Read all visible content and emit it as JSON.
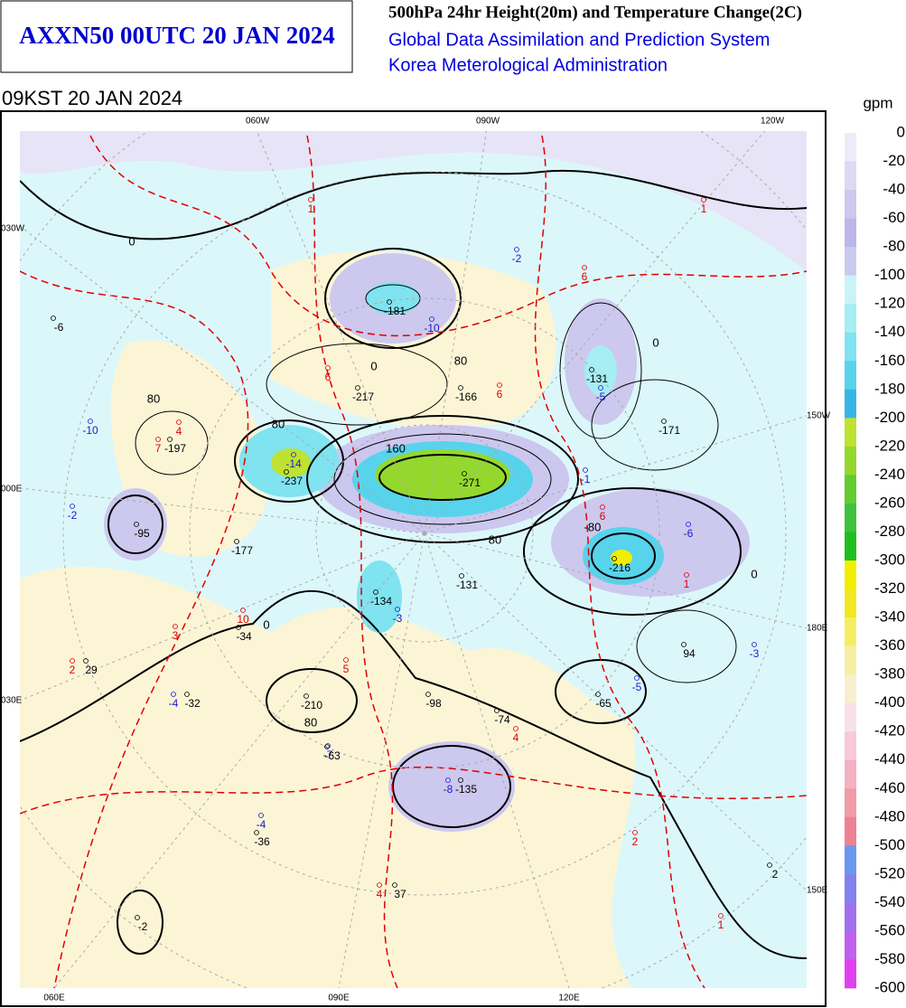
{
  "header": {
    "title": "AXXN50 00UTC 20 JAN 2024",
    "product": "500hPa 24hr Height(20m) and Temperature Change(2C)",
    "system": "Global Data Assimilation and Prediction System",
    "agency": "Korea Meterological Administration"
  },
  "valid_time": "09KST 20 JAN 2024",
  "map": {
    "top_labels": [
      "060W",
      "090W",
      "120W"
    ],
    "left_labels": [
      "030W",
      "000E",
      "030E"
    ],
    "right_labels": [
      "150W",
      "180E",
      "150E"
    ],
    "bottom_labels": [
      "060E",
      "090E",
      "120E"
    ],
    "height_change_labels": [
      "-181",
      "-217",
      "-166",
      "-197",
      "-237",
      "-271",
      "-95",
      "-177",
      "-131",
      "-171",
      "-216",
      "-134",
      "-131",
      "-34",
      "29",
      "-32",
      "-210",
      "-98",
      "-74",
      "-65",
      "94",
      "-63",
      "-135",
      "-36",
      "37",
      "2",
      "-2",
      "-6"
    ],
    "temperature_change_labels": [
      "1",
      "1",
      "6",
      "6",
      "6",
      "4",
      "7",
      "6",
      "1",
      "3",
      "2",
      "5",
      "4",
      "2",
      "4",
      "1",
      "-2",
      "-10",
      "-5",
      "-10",
      "-1",
      "-2",
      "-6",
      "-14",
      "10",
      "-3",
      "-5",
      "-4",
      "-3",
      "-7",
      "-8",
      "-4"
    ],
    "contour_labels": [
      "0",
      "0",
      "0",
      "80",
      "80",
      "80",
      "160",
      "80",
      "-80",
      "0",
      "0",
      "80"
    ]
  },
  "colorbar": {
    "unit": "gpm",
    "labels": [
      0,
      -20,
      -40,
      -60,
      -80,
      -100,
      -120,
      -140,
      -160,
      -180,
      -200,
      -220,
      -240,
      -260,
      -280,
      -300,
      -320,
      -340,
      -360,
      -380,
      -400,
      -420,
      -440,
      -460,
      -480,
      -500,
      -520,
      -540,
      -560,
      -580,
      -600
    ],
    "colors": [
      "#ecebf8",
      "#dcd9f3",
      "#cdc8ee",
      "#bdb6e8",
      "#c9cbee",
      "#c8f4f8",
      "#a6edf4",
      "#80e3f0",
      "#58d3ec",
      "#36b6e6",
      "#bde232",
      "#94d82e",
      "#62cc30",
      "#3ec23e",
      "#1fbf1f",
      "#f0ef00",
      "#f2e822",
      "#f4ef62",
      "#f7efa0",
      "#f8efcf",
      "#f8e0ea",
      "#f7c9d9",
      "#f4b1c1",
      "#f19ba9",
      "#ef8192",
      "#6a98f0",
      "#8382f0",
      "#a070f0",
      "#c060f0",
      "#e040f0"
    ]
  }
}
